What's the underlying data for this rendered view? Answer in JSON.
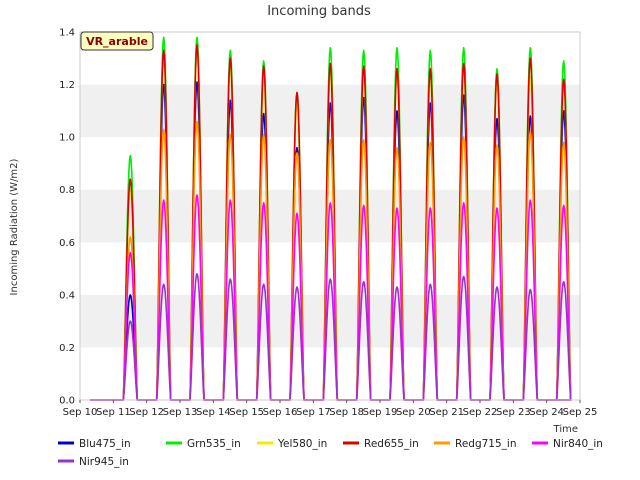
{
  "chart_data": {
    "type": "line",
    "title": "Incoming bands",
    "xlabel": "Time",
    "ylabel": "Incoming Radiation (W/m2)",
    "ylim": [
      0,
      1.4
    ],
    "yticks": [
      "0.0",
      "0.2",
      "0.4",
      "0.6",
      "0.8",
      "1.0",
      "1.2",
      "1.4"
    ],
    "xlim": [
      10,
      25
    ],
    "xticks": [
      "Sep 10",
      "Sep 11",
      "Sep 12",
      "Sep 13",
      "Sep 14",
      "Sep 15",
      "Sep 16",
      "Sep 17",
      "Sep 18",
      "Sep 19",
      "Sep 20",
      "Sep 21",
      "Sep 22",
      "Sep 23",
      "Sep 24",
      "Sep 25"
    ],
    "badge": "VR_arable",
    "grid": "horizontal bands",
    "legend_position": "bottom",
    "day_starts": [
      11,
      12,
      13,
      14,
      15,
      16,
      17,
      18,
      19,
      20,
      21,
      22,
      23,
      24
    ],
    "series": [
      {
        "name": "Blu475_in",
        "color": "#0000cc",
        "peaks": [
          0.4,
          1.2,
          1.21,
          1.14,
          1.09,
          0.96,
          1.13,
          1.15,
          1.1,
          1.13,
          1.16,
          1.07,
          1.08,
          1.1
        ]
      },
      {
        "name": "Grn535_in",
        "color": "#00ee00",
        "peaks": [
          0.93,
          1.38,
          1.38,
          1.33,
          1.29,
          1.17,
          1.34,
          1.33,
          1.34,
          1.33,
          1.34,
          1.26,
          1.34,
          1.29
        ]
      },
      {
        "name": "Yel580_in",
        "color": "#eeee00",
        "peaks": [
          0.8,
          1.3,
          1.33,
          1.27,
          1.23,
          1.13,
          1.25,
          1.24,
          1.24,
          1.23,
          1.26,
          1.21,
          1.23,
          1.21
        ]
      },
      {
        "name": "Red655_in",
        "color": "#dd0000",
        "peaks": [
          0.84,
          1.33,
          1.35,
          1.3,
          1.27,
          1.17,
          1.28,
          1.27,
          1.26,
          1.26,
          1.28,
          1.24,
          1.3,
          1.22
        ]
      },
      {
        "name": "Redg715_in",
        "color": "#ff9900",
        "peaks": [
          0.62,
          1.03,
          1.06,
          1.01,
          1.01,
          0.94,
          0.99,
          0.99,
          0.96,
          0.98,
          1.0,
          0.97,
          1.02,
          0.98
        ]
      },
      {
        "name": "Nir840_in",
        "color": "#ff00ff",
        "peaks": [
          0.56,
          0.76,
          0.78,
          0.76,
          0.75,
          0.71,
          0.75,
          0.74,
          0.73,
          0.73,
          0.75,
          0.73,
          0.76,
          0.74
        ]
      },
      {
        "name": "Nir945_in",
        "color": "#9933cc",
        "peaks": [
          0.3,
          0.44,
          0.48,
          0.46,
          0.44,
          0.43,
          0.46,
          0.45,
          0.43,
          0.44,
          0.47,
          0.43,
          0.42,
          0.45
        ]
      }
    ]
  }
}
